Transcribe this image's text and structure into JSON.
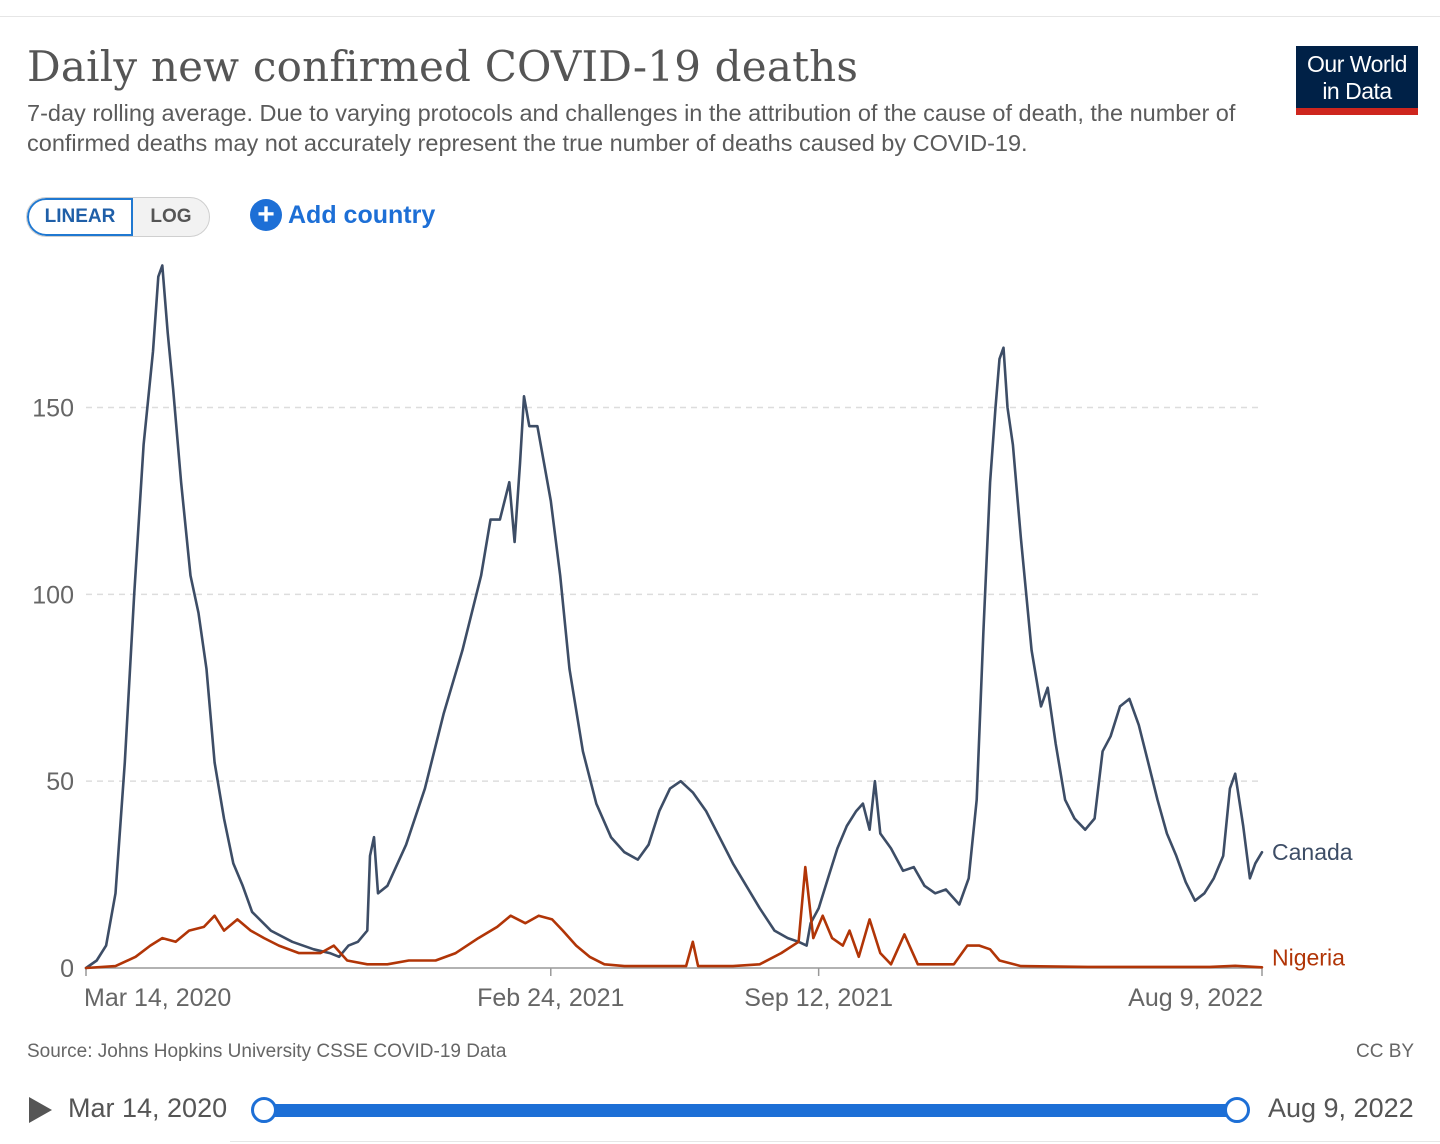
{
  "header": {
    "title": "Daily new confirmed COVID-19 deaths",
    "subtitle": "7-day rolling average. Due to varying protocols and challenges in the attribution of the cause of death, the number of confirmed deaths may not accurately represent the true number of deaths caused by COVID-19.",
    "logo_line1": "Our World",
    "logo_line2": "in Data"
  },
  "controls": {
    "linear_label": "LINEAR",
    "log_label": "LOG",
    "selected_scale": "linear",
    "add_country_label": "Add country"
  },
  "footer": {
    "source": "Source: Johns Hopkins University CSSE COVID-19 Data",
    "license": "CC BY"
  },
  "timeline": {
    "start_label": "Mar 14, 2020",
    "end_label": "Aug 9, 2022"
  },
  "colors": {
    "canada": "#3d4d66",
    "nigeria": "#b13507",
    "grid": "#dddddd",
    "axis_text": "#666666",
    "accent": "#1d6fd6"
  },
  "chart_data": {
    "type": "line",
    "title": "Daily new confirmed COVID-19 deaths",
    "xlabel": "",
    "ylabel": "",
    "x_start": "2020-03-14",
    "x_end": "2022-08-09",
    "ylim": [
      0,
      190
    ],
    "yticks": [
      0,
      50,
      100,
      150
    ],
    "xticks": [
      {
        "date": "2020-03-14",
        "label": "Mar 14, 2020"
      },
      {
        "date": "2021-02-24",
        "label": "Feb 24, 2021"
      },
      {
        "date": "2021-09-12",
        "label": "Sep 12, 2021"
      },
      {
        "date": "2022-08-09",
        "label": "Aug 9, 2022"
      }
    ],
    "grid": "horizontal-dashed",
    "legend": "inline-right",
    "series": [
      {
        "name": "Canada",
        "color": "#3d4d66",
        "points": [
          [
            "2020-03-14",
            0
          ],
          [
            "2020-03-22",
            2
          ],
          [
            "2020-03-29",
            6
          ],
          [
            "2020-04-05",
            20
          ],
          [
            "2020-04-12",
            55
          ],
          [
            "2020-04-19",
            100
          ],
          [
            "2020-04-26",
            140
          ],
          [
            "2020-05-03",
            165
          ],
          [
            "2020-05-07",
            185
          ],
          [
            "2020-05-10",
            188
          ],
          [
            "2020-05-14",
            170
          ],
          [
            "2020-05-18",
            155
          ],
          [
            "2020-05-24",
            130
          ],
          [
            "2020-05-31",
            105
          ],
          [
            "2020-06-06",
            95
          ],
          [
            "2020-06-12",
            80
          ],
          [
            "2020-06-18",
            55
          ],
          [
            "2020-06-25",
            40
          ],
          [
            "2020-07-02",
            28
          ],
          [
            "2020-07-09",
            22
          ],
          [
            "2020-07-16",
            15
          ],
          [
            "2020-07-30",
            10
          ],
          [
            "2020-08-15",
            7
          ],
          [
            "2020-08-31",
            5
          ],
          [
            "2020-09-12",
            4
          ],
          [
            "2020-09-19",
            3
          ],
          [
            "2020-09-26",
            6
          ],
          [
            "2020-10-03",
            7
          ],
          [
            "2020-10-10",
            10
          ],
          [
            "2020-10-12",
            30
          ],
          [
            "2020-10-15",
            35
          ],
          [
            "2020-10-18",
            20
          ],
          [
            "2020-10-25",
            22
          ],
          [
            "2020-11-08",
            33
          ],
          [
            "2020-11-22",
            48
          ],
          [
            "2020-12-06",
            68
          ],
          [
            "2020-12-20",
            85
          ],
          [
            "2021-01-03",
            105
          ],
          [
            "2021-01-10",
            120
          ],
          [
            "2021-01-17",
            120
          ],
          [
            "2021-01-24",
            130
          ],
          [
            "2021-01-28",
            114
          ],
          [
            "2021-02-01",
            135
          ],
          [
            "2021-02-04",
            153
          ],
          [
            "2021-02-08",
            145
          ],
          [
            "2021-02-14",
            145
          ],
          [
            "2021-02-19",
            135
          ],
          [
            "2021-02-24",
            125
          ],
          [
            "2021-03-03",
            105
          ],
          [
            "2021-03-10",
            80
          ],
          [
            "2021-03-20",
            58
          ],
          [
            "2021-03-30",
            44
          ],
          [
            "2021-04-10",
            35
          ],
          [
            "2021-04-20",
            31
          ],
          [
            "2021-04-30",
            29
          ],
          [
            "2021-05-08",
            33
          ],
          [
            "2021-05-16",
            42
          ],
          [
            "2021-05-24",
            48
          ],
          [
            "2021-06-01",
            50
          ],
          [
            "2021-06-10",
            47
          ],
          [
            "2021-06-20",
            42
          ],
          [
            "2021-06-30",
            35
          ],
          [
            "2021-07-10",
            28
          ],
          [
            "2021-07-20",
            22
          ],
          [
            "2021-07-30",
            16
          ],
          [
            "2021-08-10",
            10
          ],
          [
            "2021-08-20",
            8
          ],
          [
            "2021-08-28",
            7
          ],
          [
            "2021-09-03",
            6
          ],
          [
            "2021-09-06",
            12
          ],
          [
            "2021-09-12",
            16
          ],
          [
            "2021-09-19",
            24
          ],
          [
            "2021-09-26",
            32
          ],
          [
            "2021-10-03",
            38
          ],
          [
            "2021-10-10",
            42
          ],
          [
            "2021-10-15",
            44
          ],
          [
            "2021-10-20",
            37
          ],
          [
            "2021-10-24",
            50
          ],
          [
            "2021-10-28",
            36
          ],
          [
            "2021-11-05",
            32
          ],
          [
            "2021-11-14",
            26
          ],
          [
            "2021-11-22",
            27
          ],
          [
            "2021-11-30",
            22
          ],
          [
            "2021-12-08",
            20
          ],
          [
            "2021-12-16",
            21
          ],
          [
            "2021-12-26",
            17
          ],
          [
            "2022-01-02",
            24
          ],
          [
            "2022-01-08",
            45
          ],
          [
            "2022-01-13",
            90
          ],
          [
            "2022-01-18",
            130
          ],
          [
            "2022-01-22",
            150
          ],
          [
            "2022-01-25",
            163
          ],
          [
            "2022-01-28",
            166
          ],
          [
            "2022-01-31",
            150
          ],
          [
            "2022-02-04",
            140
          ],
          [
            "2022-02-10",
            115
          ],
          [
            "2022-02-18",
            85
          ],
          [
            "2022-02-25",
            70
          ],
          [
            "2022-03-02",
            75
          ],
          [
            "2022-03-08",
            60
          ],
          [
            "2022-03-15",
            45
          ],
          [
            "2022-03-22",
            40
          ],
          [
            "2022-03-30",
            37
          ],
          [
            "2022-04-06",
            40
          ],
          [
            "2022-04-12",
            58
          ],
          [
            "2022-04-18",
            62
          ],
          [
            "2022-04-25",
            70
          ],
          [
            "2022-05-02",
            72
          ],
          [
            "2022-05-09",
            65
          ],
          [
            "2022-05-16",
            55
          ],
          [
            "2022-05-23",
            45
          ],
          [
            "2022-05-30",
            36
          ],
          [
            "2022-06-06",
            30
          ],
          [
            "2022-06-13",
            23
          ],
          [
            "2022-06-20",
            18
          ],
          [
            "2022-06-27",
            20
          ],
          [
            "2022-07-04",
            24
          ],
          [
            "2022-07-11",
            30
          ],
          [
            "2022-07-16",
            48
          ],
          [
            "2022-07-20",
            52
          ],
          [
            "2022-07-26",
            38
          ],
          [
            "2022-07-31",
            24
          ],
          [
            "2022-08-04",
            28
          ],
          [
            "2022-08-09",
            31
          ]
        ]
      },
      {
        "name": "Nigeria",
        "color": "#b13507",
        "points": [
          [
            "2020-03-14",
            0
          ],
          [
            "2020-04-05",
            0.5
          ],
          [
            "2020-04-20",
            3
          ],
          [
            "2020-05-01",
            6
          ],
          [
            "2020-05-10",
            8
          ],
          [
            "2020-05-20",
            7
          ],
          [
            "2020-05-30",
            10
          ],
          [
            "2020-06-10",
            11
          ],
          [
            "2020-06-18",
            14
          ],
          [
            "2020-06-25",
            10
          ],
          [
            "2020-07-05",
            13
          ],
          [
            "2020-07-15",
            10
          ],
          [
            "2020-07-25",
            8
          ],
          [
            "2020-08-05",
            6
          ],
          [
            "2020-08-20",
            4
          ],
          [
            "2020-09-05",
            4
          ],
          [
            "2020-09-15",
            6
          ],
          [
            "2020-09-25",
            2
          ],
          [
            "2020-10-10",
            1
          ],
          [
            "2020-10-25",
            1
          ],
          [
            "2020-11-10",
            2
          ],
          [
            "2020-11-30",
            2
          ],
          [
            "2020-12-15",
            4
          ],
          [
            "2021-01-01",
            8
          ],
          [
            "2021-01-15",
            11
          ],
          [
            "2021-01-25",
            14
          ],
          [
            "2021-02-05",
            12
          ],
          [
            "2021-02-15",
            14
          ],
          [
            "2021-02-25",
            13
          ],
          [
            "2021-03-05",
            10
          ],
          [
            "2021-03-15",
            6
          ],
          [
            "2021-03-25",
            3
          ],
          [
            "2021-04-05",
            1
          ],
          [
            "2021-04-20",
            0.5
          ],
          [
            "2021-05-15",
            0.5
          ],
          [
            "2021-06-05",
            0.5
          ],
          [
            "2021-06-10",
            7
          ],
          [
            "2021-06-14",
            0.5
          ],
          [
            "2021-07-10",
            0.5
          ],
          [
            "2021-07-30",
            1
          ],
          [
            "2021-08-15",
            4
          ],
          [
            "2021-08-28",
            7
          ],
          [
            "2021-09-02",
            27
          ],
          [
            "2021-09-08",
            8
          ],
          [
            "2021-09-15",
            14
          ],
          [
            "2021-09-22",
            8
          ],
          [
            "2021-09-30",
            6
          ],
          [
            "2021-10-05",
            10
          ],
          [
            "2021-10-12",
            3
          ],
          [
            "2021-10-20",
            13
          ],
          [
            "2021-10-28",
            4
          ],
          [
            "2021-11-05",
            1
          ],
          [
            "2021-11-15",
            9
          ],
          [
            "2021-11-25",
            1
          ],
          [
            "2021-12-10",
            1
          ],
          [
            "2021-12-22",
            1
          ],
          [
            "2022-01-01",
            6
          ],
          [
            "2022-01-10",
            6
          ],
          [
            "2022-01-18",
            5
          ],
          [
            "2022-01-25",
            2
          ],
          [
            "2022-02-10",
            0.5
          ],
          [
            "2022-04-01",
            0.3
          ],
          [
            "2022-06-01",
            0.3
          ],
          [
            "2022-07-01",
            0.3
          ],
          [
            "2022-07-20",
            0.6
          ],
          [
            "2022-08-09",
            0.2
          ]
        ]
      }
    ]
  }
}
